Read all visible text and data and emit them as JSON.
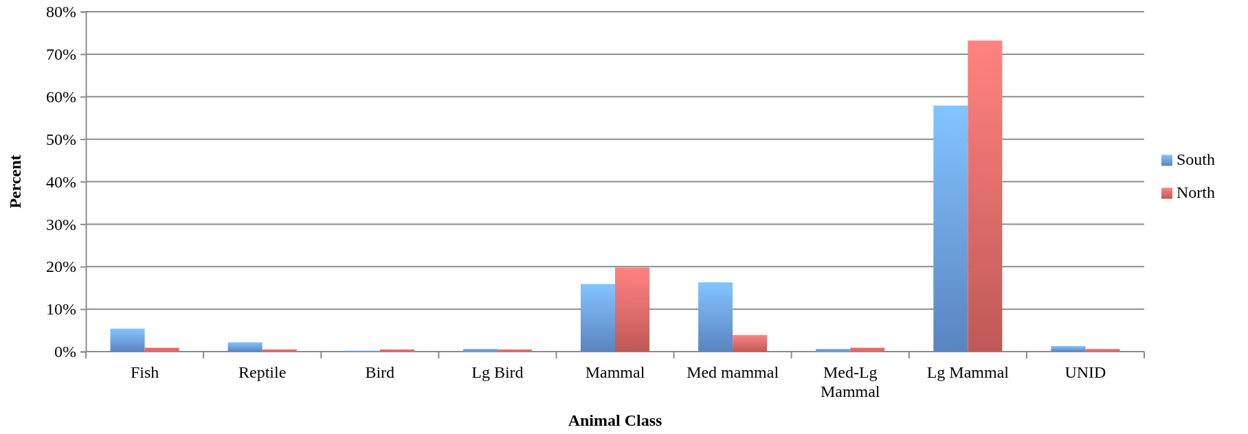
{
  "chart_data": {
    "type": "bar",
    "xlabel": "Animal Class",
    "ylabel": "Percent",
    "categories": [
      "Fish",
      "Reptile",
      "Bird",
      "Lg Bird",
      "Mammal",
      "Med mammal",
      "Med-Lg Mammal",
      "Lg Mammal",
      "UNID"
    ],
    "series": [
      {
        "name": "South",
        "color": "#6a9ee6",
        "values": [
          5.4,
          2.2,
          0.2,
          0.6,
          15.9,
          16.3,
          0.6,
          57.9,
          1.3
        ]
      },
      {
        "name": "North",
        "color": "#e46a68",
        "values": [
          0.9,
          0.5,
          0.5,
          0.5,
          19.8,
          3.9,
          0.9,
          73.2,
          0.6
        ]
      }
    ],
    "ylim": [
      0,
      80
    ],
    "yticks": [
      {
        "value": 0,
        "label": "0%"
      },
      {
        "value": 10,
        "label": "10%"
      },
      {
        "value": 20,
        "label": "20%"
      },
      {
        "value": 30,
        "label": "30%"
      },
      {
        "value": 40,
        "label": "40%"
      },
      {
        "value": 50,
        "label": "50%"
      },
      {
        "value": 60,
        "label": "60%"
      },
      {
        "value": 70,
        "label": "70%"
      },
      {
        "value": 80,
        "label": "80%"
      }
    ],
    "grid": "y",
    "legend": "right"
  }
}
